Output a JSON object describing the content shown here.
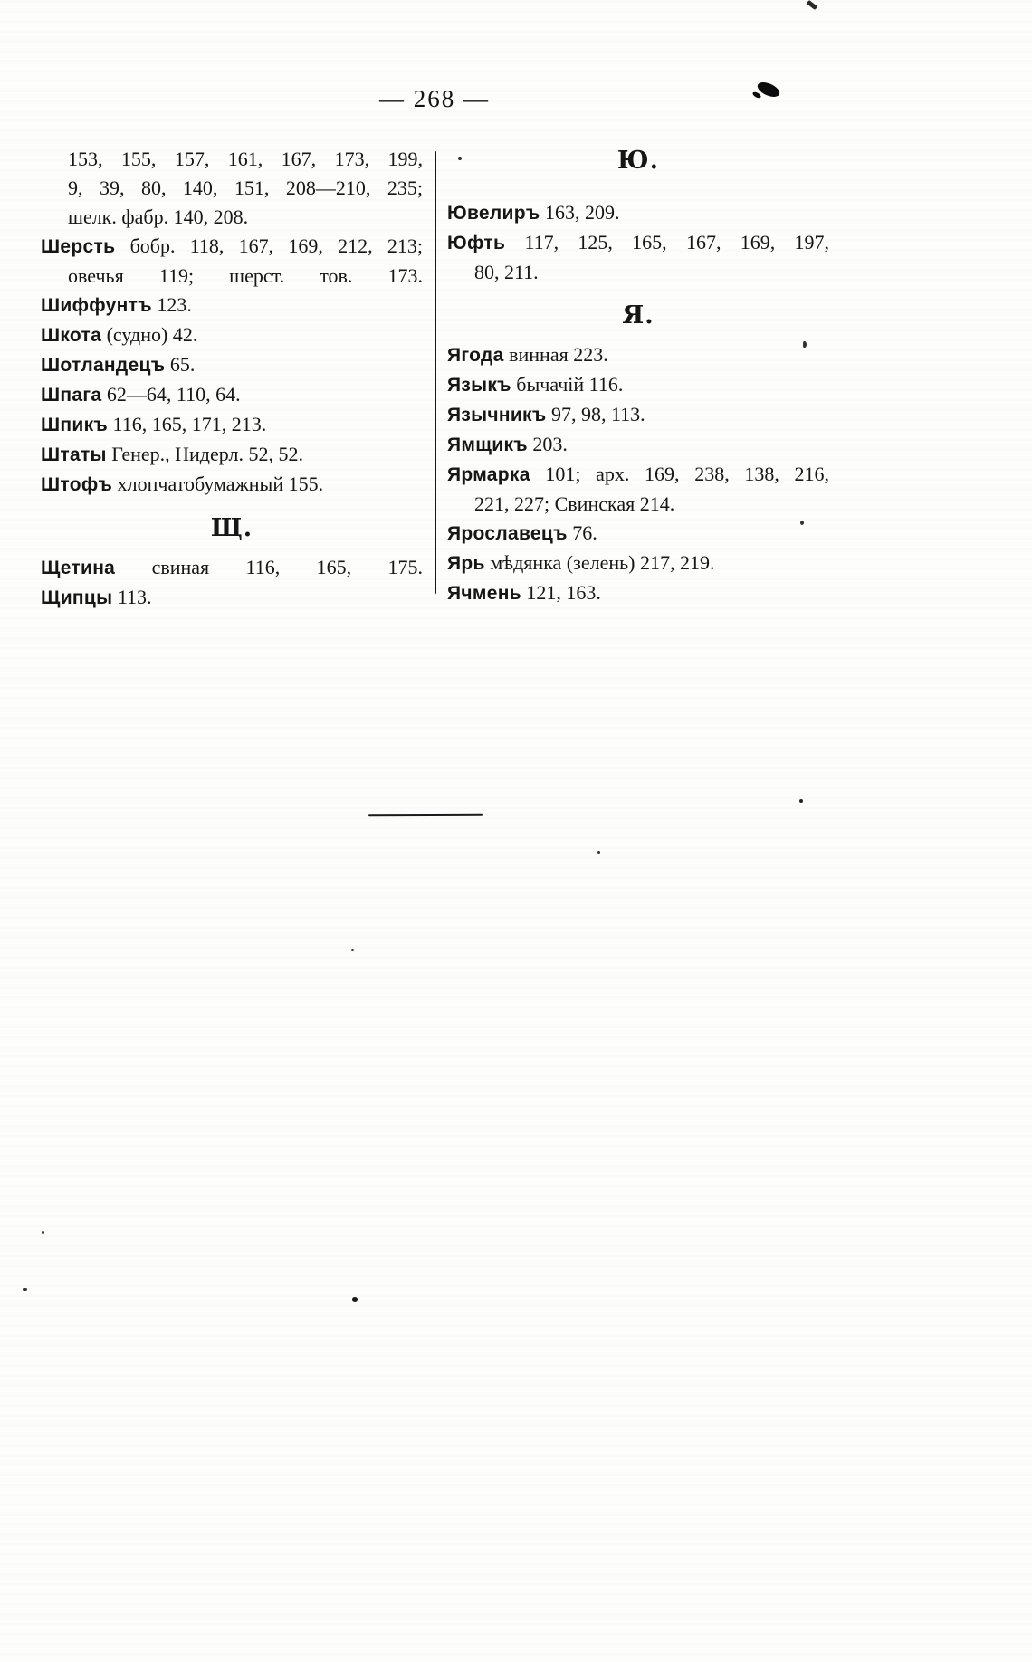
{
  "page": {
    "number": "— 268 —"
  },
  "columns": {
    "left": {
      "items": [
        {
          "type": "line",
          "head": "",
          "text": "153, 155, 157, 161, 167, 173, 199,",
          "indent": true,
          "stretch": true
        },
        {
          "type": "line",
          "head": "",
          "text": "9, 39, 80, 140, 151, 208—210, 235;",
          "indent": true,
          "stretch": true
        },
        {
          "type": "line",
          "head": "",
          "text": "шелк. фабр. 140, 208.",
          "indent": true,
          "stretch": false
        },
        {
          "type": "line",
          "head": "Шерсть",
          "text": "бобр. 118, 167, 169, 212, 213;",
          "indent": false,
          "stretch": true
        },
        {
          "type": "line",
          "head": "",
          "text": "овечья 119; шерст. тов. 173.",
          "indent": true,
          "stretch": true
        },
        {
          "type": "line",
          "head": "Шиффунтъ",
          "text": "123.",
          "indent": false,
          "stretch": false
        },
        {
          "type": "line",
          "head": "Шкота",
          "text": "(судно) 42.",
          "indent": false,
          "stretch": false
        },
        {
          "type": "line",
          "head": "Шотландецъ",
          "text": "65.",
          "indent": false,
          "stretch": false
        },
        {
          "type": "line",
          "head": "Шпага",
          "text": "62—64, 110, 64.",
          "indent": false,
          "stretch": false
        },
        {
          "type": "line",
          "head": "Шпикъ",
          "text": "116, 165, 171, 213.",
          "indent": false,
          "stretch": false
        },
        {
          "type": "line",
          "head": "Штаты",
          "text": "Генер., Нидерл. 52, 52.",
          "indent": false,
          "stretch": false
        },
        {
          "type": "line",
          "head": "Штофъ",
          "text": "хлопчатобумажный 155.",
          "indent": false,
          "stretch": false
        },
        {
          "type": "heading",
          "text": "Щ."
        },
        {
          "type": "line",
          "head": "Щетина",
          "text": "свиная 116, 165, 175.",
          "indent": false,
          "stretch": true
        },
        {
          "type": "line",
          "head": "Щипцы",
          "text": "113.",
          "indent": false,
          "stretch": false
        }
      ]
    },
    "right": {
      "items": [
        {
          "type": "heading",
          "text": "Ю."
        },
        {
          "type": "line",
          "head": "Ювелиръ",
          "text": "163, 209.",
          "indent": false,
          "stretch": false
        },
        {
          "type": "line",
          "head": "Юфть",
          "text": "117, 125, 165, 167, 169, 197,",
          "indent": false,
          "stretch": true
        },
        {
          "type": "line",
          "head": "",
          "text": "80, 211.",
          "indent": true,
          "stretch": false
        },
        {
          "type": "heading",
          "text": "Я."
        },
        {
          "type": "line",
          "head": "Ягода",
          "text": "винная 223.",
          "indent": false,
          "stretch": false
        },
        {
          "type": "line",
          "head": "Языкъ",
          "text": "бычачій 116.",
          "indent": false,
          "stretch": false
        },
        {
          "type": "line",
          "head": "Язычникъ",
          "text": "97, 98, 113.",
          "indent": false,
          "stretch": false
        },
        {
          "type": "line",
          "head": "Ямщикъ",
          "text": "203.",
          "indent": false,
          "stretch": false
        },
        {
          "type": "line",
          "head": "Ярмарка",
          "text": "101; арх. 169, 238, 138, 216,",
          "indent": false,
          "stretch": true
        },
        {
          "type": "line",
          "head": "",
          "text": "221, 227; Свинская 214.",
          "indent": true,
          "stretch": false
        },
        {
          "type": "line",
          "head": "Ярославецъ",
          "text": "76.",
          "indent": false,
          "stretch": false
        },
        {
          "type": "line",
          "head": "Ярь",
          "text": "мѣдянка (зелень) 217, 219.",
          "indent": false,
          "stretch": false
        },
        {
          "type": "line",
          "head": "Ячмень",
          "text": "121, 163.",
          "indent": false,
          "stretch": false
        }
      ]
    }
  }
}
